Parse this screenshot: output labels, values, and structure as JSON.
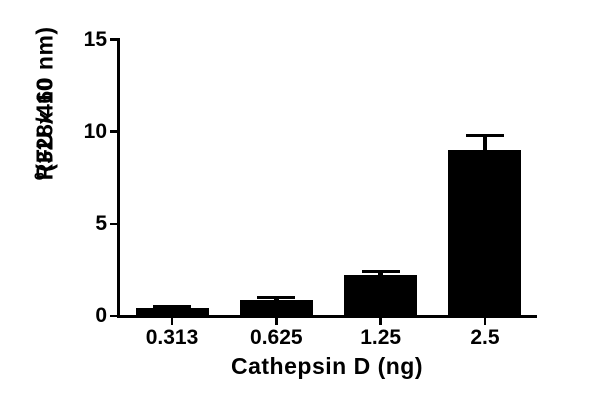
{
  "figure": {
    "background": "#ffffff",
    "ink_color": "#000000"
  },
  "chart_data": {
    "type": "bar",
    "title": "",
    "xlabel": "Cathepsin D (ng)",
    "ylabel": "RFU x 10^6 (328/460 nm)",
    "ylabel_parts": {
      "base": "RFU x 10",
      "exponent": "6",
      "suffix": " (328/460 nm)"
    },
    "categories": [
      "0.313",
      "0.625",
      "1.25",
      "2.5"
    ],
    "values": [
      0.45,
      0.85,
      2.2,
      9.0
    ],
    "errors_plus": [
      0.05,
      0.15,
      0.2,
      0.8
    ],
    "error_bar_style": "upper only, capped",
    "bar_color": "#000000",
    "yticks": [
      0,
      5,
      10,
      15
    ],
    "ylim": [
      0,
      15
    ],
    "grid": false,
    "legend_position": "none"
  }
}
